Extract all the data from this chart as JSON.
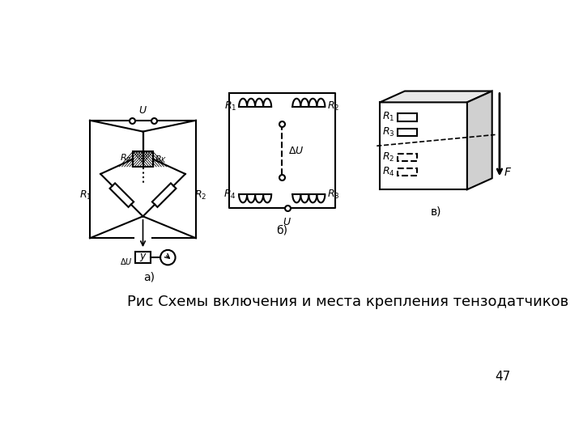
{
  "title": "Рис Схемы включения и места крепления тензодатчиков",
  "page_number": "47",
  "bg_color": "#ffffff",
  "line_color": "#000000",
  "label_a": "а)",
  "label_b": "б)",
  "label_v": "в)"
}
